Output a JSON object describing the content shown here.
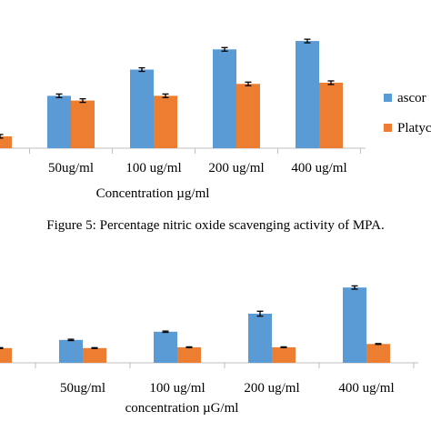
{
  "figure_caption": "Figure 5: Percentage nitric oxide scavenging activity of MPA.",
  "colors": {
    "series1": "#5b9bd5",
    "series2": "#ed7d31",
    "axis": "#bfbfbf",
    "error": "#000000"
  },
  "chart_data": [
    {
      "type": "bar",
      "categories": [
        "ml",
        "50ug/ml",
        "100 ug/ml",
        "200 ug/ml",
        "400 ug/ml"
      ],
      "xlabel": "Concentration µg/ml",
      "ylabel": "",
      "ylim": [
        0,
        100
      ],
      "legend_placement": "right",
      "grid": false,
      "series": [
        {
          "name": "ascor",
          "values": [
            null,
            44,
            66,
            83,
            90
          ],
          "errors": [
            null,
            1.5,
            1.5,
            1.5,
            1.5
          ]
        },
        {
          "name": "Platyc",
          "values": [
            10,
            40,
            44,
            54,
            55
          ],
          "errors": [
            1.5,
            1.5,
            1.5,
            1.5,
            1.5
          ]
        }
      ]
    },
    {
      "type": "bar",
      "categories": [
        "ml",
        "50ug/ml",
        "100 ug/ml",
        "200 ug/ml",
        "400 ug/ml"
      ],
      "xlabel": "concentration µG/ml",
      "ylabel": "",
      "ylim": [
        0,
        100
      ],
      "grid": false,
      "series": [
        {
          "name": "",
          "values": [
            null,
            28,
            38,
            60,
            92
          ],
          "errors": [
            null,
            0.8,
            0.8,
            3,
            2
          ]
        },
        {
          "name": "",
          "values": [
            18,
            18,
            19,
            19,
            23
          ],
          "errors": [
            0.5,
            0.5,
            0.5,
            0.5,
            0.5
          ]
        }
      ]
    }
  ]
}
